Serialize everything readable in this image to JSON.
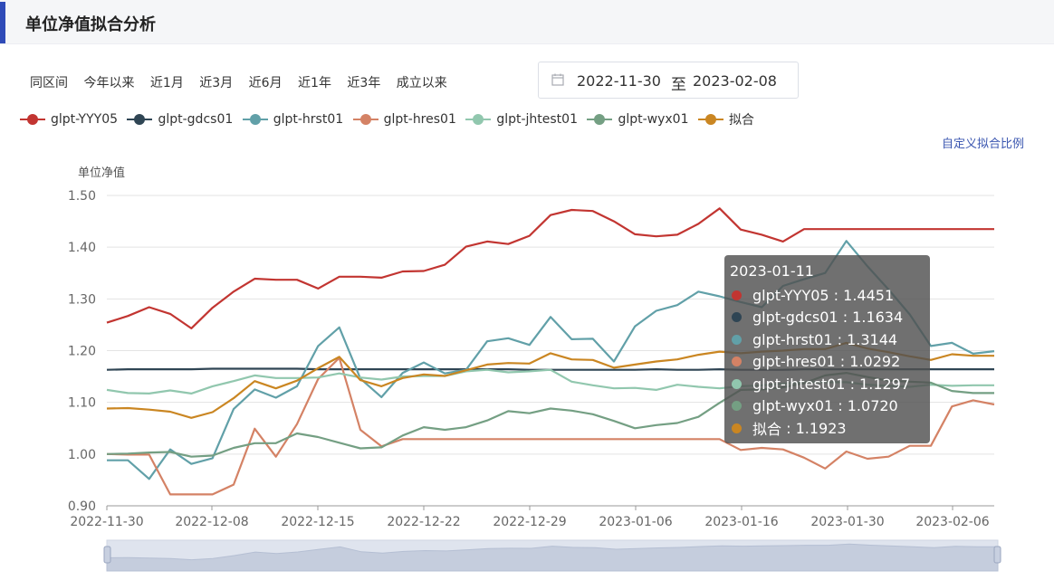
{
  "header": {
    "title": "单位净值拟合分析"
  },
  "range_buttons": [
    "同区间",
    "今年以来",
    "近1月",
    "近3月",
    "近6月",
    "近1年",
    "近3年",
    "成立以来"
  ],
  "date_range": {
    "start": "2022-11-30",
    "separator": "至",
    "end": "2023-02-08"
  },
  "custom_link": "自定义拟合比例",
  "colors": {
    "glpt-YYY05": "#c23531",
    "glpt-gdcs01": "#2f4554",
    "glpt-hrst01": "#61a0a8",
    "glpt-hres01": "#d48265",
    "glpt-jhtest01": "#91c7ae",
    "glpt-wyx01": "#749f83",
    "拟合": "#ca8622"
  },
  "tooltip": {
    "date": "2023-01-11",
    "rows": [
      {
        "name": "glpt-YYY05",
        "value": "1.4451",
        "color": "#c23531"
      },
      {
        "name": "glpt-gdcs01",
        "value": "1.1634",
        "color": "#2f4554"
      },
      {
        "name": "glpt-hrst01",
        "value": "1.3144",
        "color": "#61a0a8"
      },
      {
        "name": "glpt-hres01",
        "value": "1.0292",
        "color": "#d48265"
      },
      {
        "name": "glpt-jhtest01",
        "value": "1.1297",
        "color": "#91c7ae"
      },
      {
        "name": "glpt-wyx01",
        "value": "1.0720",
        "color": "#749f83"
      },
      {
        "name": "拟合",
        "value": "1.1923",
        "color": "#ca8622"
      }
    ]
  },
  "chart_data": {
    "type": "line",
    "ylabel": "单位净值",
    "ylim": [
      0.9,
      1.5
    ],
    "yticks": [
      0.9,
      1.0,
      1.1,
      1.2,
      1.3,
      1.4,
      1.5
    ],
    "xtick_labels": [
      "2022-11-30",
      "2022-12-08",
      "2022-12-15",
      "2022-12-22",
      "2022-12-29",
      "2023-01-06",
      "2023-01-16",
      "2023-01-30",
      "2023-02-06"
    ],
    "legend_position": "top-left",
    "grid": true,
    "series": [
      {
        "name": "glpt-YYY05",
        "values": [
          1.254,
          1.267,
          1.284,
          1.271,
          1.243,
          1.283,
          1.314,
          1.339,
          1.337,
          1.337,
          1.32,
          1.343,
          1.343,
          1.341,
          1.353,
          1.354,
          1.366,
          1.401,
          1.411,
          1.406,
          1.422,
          1.462,
          1.472,
          1.47,
          1.45,
          1.425,
          1.421,
          1.424,
          1.445,
          1.475,
          1.434,
          1.424,
          1.411,
          1.435,
          1.435,
          1.435,
          1.435,
          1.435,
          1.435,
          1.435,
          1.435,
          1.435,
          1.435
        ]
      },
      {
        "name": "glpt-gdcs01",
        "values": [
          1.163,
          1.164,
          1.164,
          1.164,
          1.164,
          1.165,
          1.165,
          1.165,
          1.165,
          1.165,
          1.164,
          1.164,
          1.164,
          1.164,
          1.164,
          1.164,
          1.164,
          1.164,
          1.164,
          1.164,
          1.163,
          1.163,
          1.163,
          1.163,
          1.163,
          1.163,
          1.164,
          1.163,
          1.163,
          1.164,
          1.163,
          1.163,
          1.163,
          1.164,
          1.164,
          1.164,
          1.164,
          1.164,
          1.164,
          1.164,
          1.164,
          1.164,
          1.164
        ]
      },
      {
        "name": "glpt-hrst01",
        "values": [
          0.988,
          0.988,
          0.952,
          1.009,
          0.981,
          0.992,
          1.087,
          1.125,
          1.109,
          1.131,
          1.209,
          1.245,
          1.146,
          1.11,
          1.157,
          1.177,
          1.156,
          1.163,
          1.218,
          1.224,
          1.211,
          1.265,
          1.222,
          1.223,
          1.179,
          1.247,
          1.277,
          1.288,
          1.314,
          1.305,
          1.294,
          1.284,
          1.325,
          1.338,
          1.35,
          1.412,
          1.363,
          1.318,
          1.27,
          1.209,
          1.215,
          1.194,
          1.199
        ]
      },
      {
        "name": "glpt-hres01",
        "values": [
          1.0,
          0.999,
          0.999,
          0.922,
          0.922,
          0.922,
          0.941,
          1.049,
          0.995,
          1.058,
          1.145,
          1.186,
          1.047,
          1.015,
          1.029,
          1.029,
          1.029,
          1.029,
          1.029,
          1.029,
          1.029,
          1.029,
          1.029,
          1.029,
          1.029,
          1.029,
          1.029,
          1.029,
          1.029,
          1.029,
          1.008,
          1.012,
          1.009,
          0.993,
          0.972,
          1.005,
          0.991,
          0.995,
          1.016,
          1.016,
          1.092,
          1.104,
          1.096
        ]
      },
      {
        "name": "glpt-jhtest01",
        "values": [
          1.124,
          1.118,
          1.117,
          1.123,
          1.117,
          1.131,
          1.141,
          1.152,
          1.147,
          1.147,
          1.148,
          1.156,
          1.148,
          1.144,
          1.15,
          1.151,
          1.151,
          1.16,
          1.163,
          1.158,
          1.16,
          1.163,
          1.14,
          1.133,
          1.127,
          1.128,
          1.124,
          1.134,
          1.13,
          1.127,
          1.131,
          1.133,
          1.136,
          1.139,
          1.139,
          1.139,
          1.134,
          1.132,
          1.13,
          1.134,
          1.132,
          1.133,
          1.133
        ]
      },
      {
        "name": "glpt-wyx01",
        "values": [
          1.0,
          1.001,
          1.003,
          1.004,
          0.995,
          0.997,
          1.012,
          1.021,
          1.021,
          1.04,
          1.033,
          1.022,
          1.011,
          1.013,
          1.036,
          1.052,
          1.047,
          1.052,
          1.065,
          1.083,
          1.079,
          1.088,
          1.084,
          1.077,
          1.064,
          1.05,
          1.056,
          1.06,
          1.072,
          1.099,
          1.124,
          1.125,
          1.129,
          1.137,
          1.152,
          1.157,
          1.149,
          1.142,
          1.14,
          1.138,
          1.122,
          1.118,
          1.118
        ]
      },
      {
        "name": "拟合",
        "values": [
          1.088,
          1.089,
          1.086,
          1.082,
          1.07,
          1.081,
          1.108,
          1.141,
          1.127,
          1.142,
          1.166,
          1.188,
          1.143,
          1.131,
          1.147,
          1.154,
          1.151,
          1.162,
          1.173,
          1.176,
          1.175,
          1.195,
          1.183,
          1.182,
          1.167,
          1.173,
          1.179,
          1.183,
          1.192,
          1.198,
          1.195,
          1.198,
          1.2,
          1.203,
          1.203,
          1.215,
          1.204,
          1.197,
          1.189,
          1.182,
          1.193,
          1.19,
          1.19
        ]
      }
    ]
  }
}
